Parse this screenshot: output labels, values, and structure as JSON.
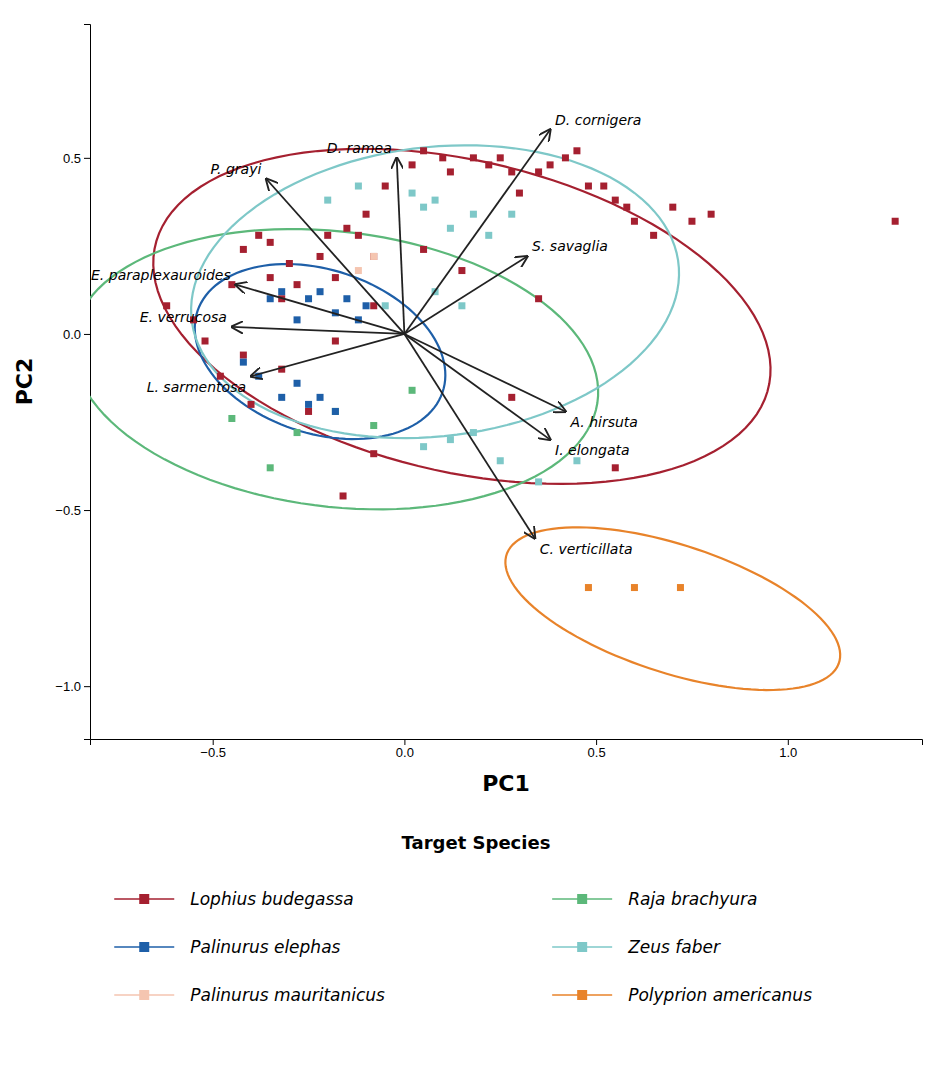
{
  "chart_data": {
    "type": "scatter",
    "x_label": "PC1",
    "y_label": "PC2",
    "xlim": [
      -0.82,
      1.35
    ],
    "ylim": [
      -1.15,
      0.88
    ],
    "xticks": [
      {
        "value": -0.5,
        "label": "−0.5"
      },
      {
        "value": 0.0,
        "label": "0.0"
      },
      {
        "value": 0.5,
        "label": "0.5"
      },
      {
        "value": 1.0,
        "label": "1.0"
      }
    ],
    "yticks": [
      {
        "value": -1.0,
        "label": "−1.0"
      },
      {
        "value": -0.5,
        "label": "−0.5"
      },
      {
        "value": 0.0,
        "label": "0.0"
      },
      {
        "value": 0.5,
        "label": "0.5"
      }
    ],
    "legend": "bottom",
    "legend_title": "Target Species",
    "series": [
      {
        "name": "Lophius budegassa",
        "color": "#a52030",
        "marker": "square",
        "ellipse": {
          "cx": 0.15,
          "cy": 0.05,
          "width": 1.65,
          "height": 0.88,
          "angle": -15
        },
        "x": [
          -0.62,
          -0.55,
          -0.52,
          -0.48,
          -0.45,
          -0.42,
          -0.42,
          -0.4,
          -0.38,
          -0.35,
          -0.35,
          -0.32,
          -0.32,
          -0.3,
          -0.28,
          -0.25,
          -0.22,
          -0.2,
          -0.18,
          -0.15,
          -0.12,
          -0.1,
          -0.08,
          -0.05,
          0.02,
          0.05,
          0.1,
          0.12,
          0.18,
          0.22,
          0.25,
          0.28,
          0.3,
          0.35,
          0.38,
          0.42,
          0.45,
          0.48,
          0.52,
          0.55,
          0.58,
          0.6,
          0.65,
          0.7,
          0.75,
          0.8,
          1.28,
          0.55,
          -0.08,
          -0.16,
          0.28,
          0.35,
          0.15,
          0.05,
          -0.08,
          -0.18
        ],
        "values": [
          0.08,
          0.04,
          -0.02,
          -0.12,
          0.14,
          0.24,
          -0.06,
          -0.2,
          0.28,
          0.26,
          0.16,
          0.1,
          -0.1,
          0.2,
          0.14,
          -0.22,
          0.22,
          0.28,
          0.16,
          0.3,
          0.28,
          0.34,
          0.22,
          0.42,
          0.48,
          0.52,
          0.5,
          0.46,
          0.5,
          0.48,
          0.5,
          0.46,
          0.4,
          0.46,
          0.48,
          0.5,
          0.52,
          0.42,
          0.42,
          0.38,
          0.36,
          0.32,
          0.28,
          0.36,
          0.32,
          0.34,
          0.32,
          -0.38,
          -0.34,
          -0.46,
          -0.18,
          0.1,
          0.18,
          0.24,
          0.08,
          -0.02
        ]
      },
      {
        "name": "Raja brachyura",
        "color": "#5cb87a",
        "marker": "square",
        "ellipse": {
          "cx": -0.18,
          "cy": -0.1,
          "width": 1.38,
          "height": 0.78,
          "angle": -8
        },
        "x": [
          -0.35,
          -0.28,
          -0.18,
          -0.08,
          0.02,
          -0.45
        ],
        "values": [
          -0.38,
          -0.28,
          -0.22,
          -0.26,
          -0.16,
          -0.24
        ]
      },
      {
        "name": "Palinurus elephas",
        "color": "#1e5fa8",
        "marker": "square",
        "ellipse": {
          "cx": -0.22,
          "cy": -0.05,
          "width": 0.68,
          "height": 0.46,
          "angle": -22
        },
        "x": [
          -0.35,
          -0.32,
          -0.28,
          -0.25,
          -0.22,
          -0.18,
          -0.15,
          -0.12,
          -0.1,
          -0.42,
          -0.38,
          -0.32,
          -0.28,
          -0.25,
          -0.22,
          -0.18
        ],
        "values": [
          0.1,
          0.12,
          0.04,
          0.1,
          0.12,
          0.06,
          0.1,
          0.04,
          0.08,
          -0.08,
          -0.12,
          -0.18,
          -0.14,
          -0.2,
          -0.18,
          -0.22
        ]
      },
      {
        "name": "Zeus faber",
        "color": "#7ec8c8",
        "marker": "square",
        "ellipse": {
          "cx": 0.08,
          "cy": 0.12,
          "width": 1.28,
          "height": 0.82,
          "angle": 8
        },
        "x": [
          -0.2,
          -0.12,
          0.02,
          0.05,
          0.08,
          0.12,
          0.18,
          0.22,
          0.28,
          0.05,
          0.12,
          0.18,
          0.25,
          0.35,
          0.45,
          -0.05,
          0.08,
          0.15
        ],
        "values": [
          0.38,
          0.42,
          0.4,
          0.36,
          0.38,
          0.3,
          0.34,
          0.28,
          0.34,
          -0.32,
          -0.3,
          -0.28,
          -0.36,
          -0.42,
          -0.36,
          0.08,
          0.12,
          0.08
        ]
      },
      {
        "name": "Palinurus mauritanicus",
        "color": "#f5c5b0",
        "marker": "square",
        "x": [
          -0.12,
          -0.08
        ],
        "values": [
          0.18,
          0.22
        ]
      },
      {
        "name": "Polyprion americanus",
        "color": "#e8832a",
        "marker": "square",
        "ellipse": {
          "cx": 0.7,
          "cy": -0.78,
          "width": 0.92,
          "height": 0.36,
          "angle": -20
        },
        "x": [
          0.48,
          0.6,
          0.72
        ],
        "values": [
          -0.72,
          -0.72,
          -0.72
        ]
      }
    ],
    "arrows": [
      {
        "x": -0.36,
        "y": 0.44,
        "label": "P. grayi"
      },
      {
        "x": -0.02,
        "y": 0.5,
        "label": "D. ramea"
      },
      {
        "x": -0.44,
        "y": 0.14,
        "label": "E. paraplexauroides"
      },
      {
        "x": -0.45,
        "y": 0.02,
        "label": "E. verrucosa"
      },
      {
        "x": -0.4,
        "y": -0.12,
        "label": "L. sarmentosa"
      },
      {
        "x": 0.32,
        "y": 0.22,
        "label": "S. savaglia"
      },
      {
        "x": 0.38,
        "y": 0.58,
        "label": "D. cornigera"
      },
      {
        "x": 0.42,
        "y": -0.22,
        "label": "A. hirsuta"
      },
      {
        "x": 0.38,
        "y": -0.3,
        "label": "I. elongata"
      },
      {
        "x": 0.34,
        "y": -0.58,
        "label": "C. verticillata"
      }
    ]
  }
}
